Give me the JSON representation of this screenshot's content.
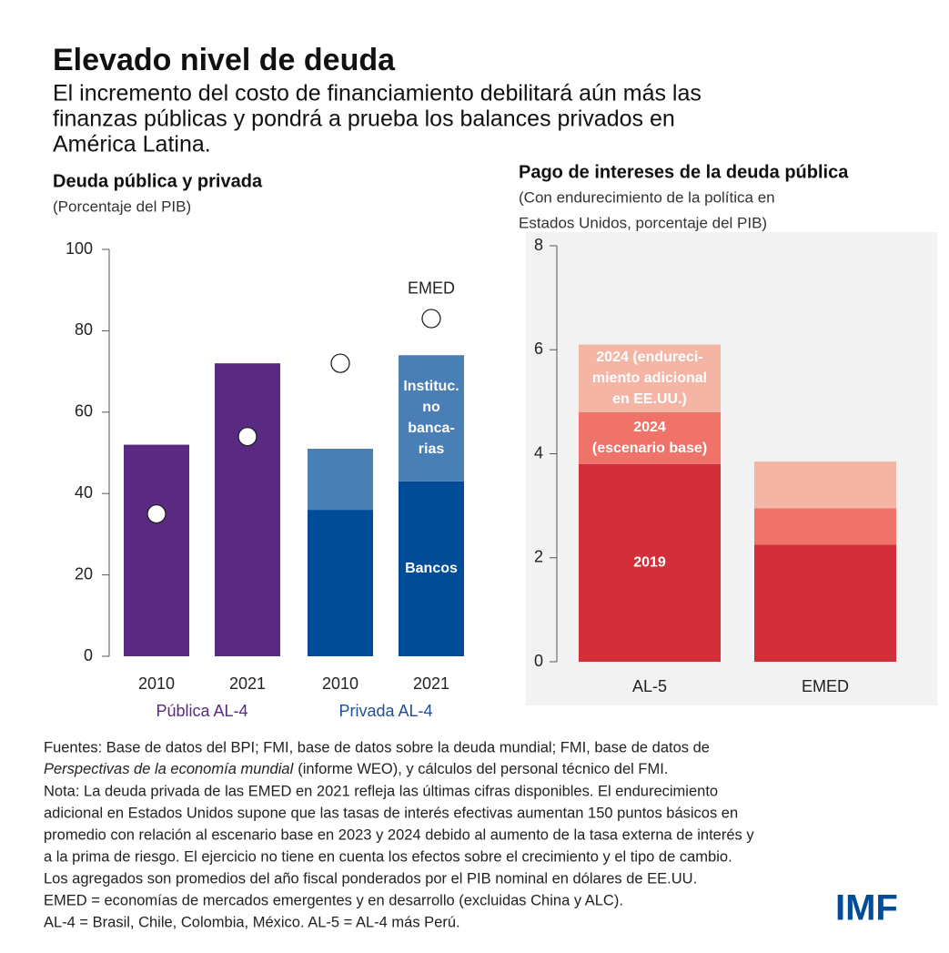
{
  "title": "Elevado nivel de deuda",
  "subtitle": [
    "El incremento del costo de financiamiento debilitará aún más las",
    "finanzas públicas y pondrá a prueba los balances privados en",
    "América Latina."
  ],
  "chart_data": [
    {
      "type": "bar",
      "title": "Deuda pública y privada",
      "subtitle": [
        "(Porcentaje del PIB)"
      ],
      "categories": [
        "2010",
        "2021",
        "2010",
        "2021"
      ],
      "groups": [
        {
          "label": "Pública AL-4",
          "color": "#5a2a82"
        },
        {
          "label": "Privada AL-4",
          "color": "#1f4e99"
        }
      ],
      "series": [
        {
          "color": "#5a2a82",
          "values": [
            52,
            72,
            null,
            null
          ]
        },
        {
          "label_lines": [
            "Bancos"
          ],
          "color": "#004c97",
          "values": [
            null,
            null,
            36,
            43
          ]
        },
        {
          "label_lines": [
            "Instituc.",
            "no",
            "banca-",
            "rias"
          ],
          "color": "#4a7fb5",
          "values": [
            null,
            null,
            15,
            31
          ]
        },
        {
          "type": "scatter",
          "label_lines": [
            "EMED"
          ],
          "color": "#ffffff",
          "values": [
            35,
            54,
            72,
            83
          ]
        }
      ],
      "ylim": [
        0,
        100
      ],
      "yticks": [
        0,
        20,
        40,
        60,
        80,
        100
      ],
      "grid": false
    },
    {
      "type": "bar",
      "title": "Pago de intereses de la deuda pública",
      "subtitle": [
        "(Con endurecimiento de la política en",
        "Estados Unidos, porcentaje del PIB)"
      ],
      "categories": [
        "AL-5",
        "EMED"
      ],
      "series": [
        {
          "label_lines": [
            "2019"
          ],
          "color": "#d32f3a",
          "values": [
            3.8,
            2.25
          ]
        },
        {
          "label_lines": [
            "2024",
            "(escenario base)"
          ],
          "color": "#ef7368",
          "values": [
            1.0,
            0.7
          ]
        },
        {
          "label_lines": [
            "2024 (endureci-",
            "miento adicional",
            "en EE.UU.)"
          ],
          "color": "#f5b5a4",
          "values": [
            1.3,
            0.9
          ]
        }
      ],
      "ylim": [
        0,
        8
      ],
      "yticks": [
        0,
        2,
        4,
        6,
        8
      ],
      "grid": false
    }
  ],
  "notes": [
    "Fuentes: Base de datos del BPI; FMI, base de datos sobre la deuda mundial; FMI, base de datos de",
    [
      "Perspectivas de la economía mundial",
      "(informe WEO), y cálculos del personal técnico del FMI."
    ],
    "Nota: La deuda privada de las EMED en 2021 refleja las últimas cifras disponibles. El endurecimiento",
    "adicional en Estados Unidos supone que las tasas de interés efectivas aumentan 150 puntos básicos en",
    "promedio con relación al escenario base en 2023 y 2024 debido al aumento de la tasa externa de interés y",
    "a la prima de riesgo. El ejercicio no tiene en cuenta los efectos sobre el crecimiento y el tipo de cambio.",
    "Los agregados son promedios del año fiscal ponderados por el PIB nominal en dólares de EE.UU.",
    "EMED = economías de mercados emergentes y en desarrollo (excluidas China y ALC).",
    "AL-4 = Brasil, Chile, Colombia, México. AL-5 = AL-4 más Perú."
  ],
  "logo": "IMF"
}
